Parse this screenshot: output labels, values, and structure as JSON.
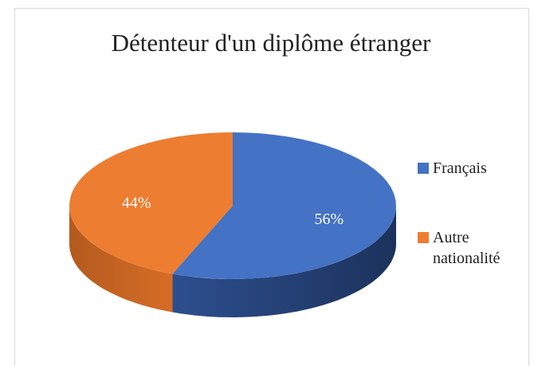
{
  "chart_data": {
    "type": "pie",
    "title": "Détenteur d'un diplôme étranger",
    "categories": [
      "Français",
      "Autre nationalité"
    ],
    "values": [
      56,
      44
    ],
    "value_labels": [
      "56%",
      "44%"
    ],
    "colors": [
      "#4472c4",
      "#ed7d31"
    ],
    "legend": "right"
  }
}
